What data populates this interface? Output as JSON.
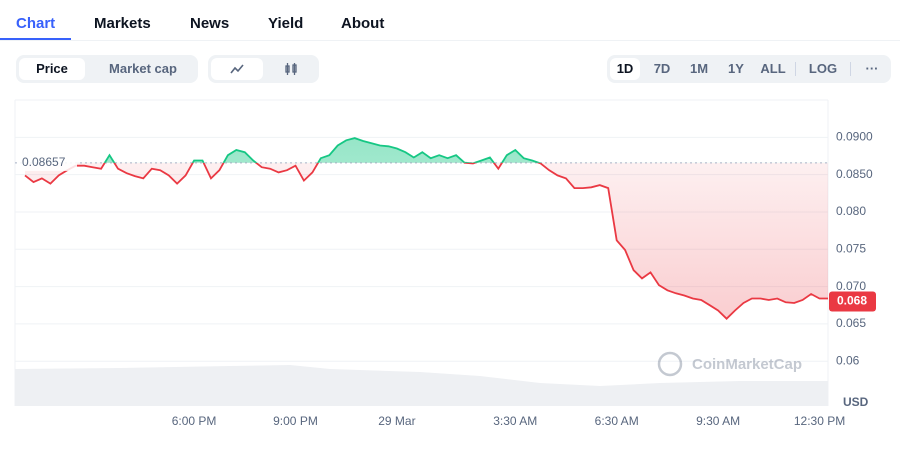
{
  "tabs": [
    "Chart",
    "Markets",
    "News",
    "Yield",
    "About"
  ],
  "toggles": [
    "Price",
    "Market cap"
  ],
  "ranges": [
    "1D",
    "7D",
    "1M",
    "1Y",
    "ALL",
    "LOG"
  ],
  "more": "···",
  "chart_data": {
    "type": "line",
    "categories": [
      null,
      null,
      null,
      null,
      null,
      null,
      null,
      null,
      null,
      null,
      null,
      null,
      null,
      null,
      null,
      null,
      null,
      null,
      null,
      null,
      "6:00 PM",
      null,
      null,
      null,
      null,
      null,
      null,
      null,
      null,
      null,
      null,
      null,
      "9:00 PM",
      null,
      null,
      null,
      null,
      null,
      null,
      null,
      null,
      null,
      null,
      null,
      "29 Mar",
      null,
      null,
      null,
      null,
      null,
      null,
      null,
      null,
      null,
      null,
      null,
      null,
      null,
      "3:30 AM",
      null,
      null,
      null,
      null,
      null,
      null,
      null,
      null,
      null,
      null,
      null,
      "6:30 AM",
      null,
      null,
      null,
      null,
      null,
      null,
      null,
      null,
      null,
      null,
      null,
      "9:30 AM",
      null,
      null,
      null,
      null,
      null,
      null,
      null,
      null,
      null,
      null,
      null,
      "12:30 PM",
      null
    ],
    "series": [
      {
        "name": "Price",
        "color": "#ea3943",
        "up_color": "#16c784",
        "values": [
          0.0849,
          0.084,
          0.0845,
          0.0838,
          0.0849,
          0.0856,
          0.0862,
          0.0862,
          0.086,
          0.0858,
          0.0876,
          0.0858,
          0.0852,
          0.0848,
          0.0845,
          0.0858,
          0.0856,
          0.0849,
          0.0838,
          0.0849,
          0.0869,
          0.0869,
          0.0845,
          0.0856,
          0.0876,
          0.0883,
          0.088,
          0.0869,
          0.086,
          0.0858,
          0.0853,
          0.0856,
          0.0862,
          0.0842,
          0.0853,
          0.0872,
          0.0876,
          0.0889,
          0.0896,
          0.0899,
          0.0895,
          0.0892,
          0.0889,
          0.0888,
          0.0885,
          0.088,
          0.0873,
          0.088,
          0.0872,
          0.0876,
          0.0872,
          0.0876,
          0.0866,
          0.0865,
          0.0869,
          0.0873,
          0.0858,
          0.0876,
          0.0883,
          0.0872,
          0.0869,
          0.0865,
          0.0856,
          0.0849,
          0.0845,
          0.0832,
          0.0832,
          0.0833,
          0.0836,
          0.0832,
          0.0762,
          0.0749,
          0.0722,
          0.0711,
          0.0719,
          0.0702,
          0.0695,
          0.0691,
          0.0688,
          0.0684,
          0.0682,
          0.0675,
          0.0668,
          0.0657,
          0.0668,
          0.0678,
          0.0684,
          0.0684,
          0.0682,
          0.0684,
          0.0679,
          0.0678,
          0.0682,
          0.069,
          0.0684,
          0.0684
        ]
      }
    ],
    "reference_value": 0.08657,
    "current_price": 0.068,
    "ylim": [
      0.054,
      0.095
    ],
    "yticks": [
      0.06,
      0.065,
      {
        "value": 0.07,
        "label": "0.070"
      },
      0.075,
      {
        "value": 0.08,
        "label": "0.080"
      },
      {
        "value": 0.085,
        "label": "0.0850"
      },
      {
        "value": 0.09,
        "label": "0.0900"
      }
    ],
    "y_unit": "USD",
    "watermark": "CoinMarketCap",
    "grid": true
  }
}
